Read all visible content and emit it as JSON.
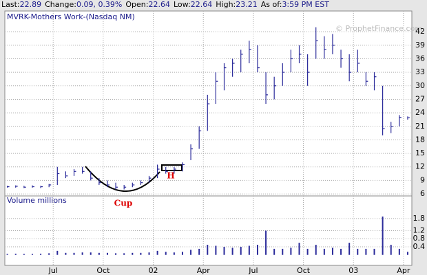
{
  "header": {
    "items": [
      {
        "label": "Last:",
        "value": "22.89"
      },
      {
        "label": "Change:",
        "value": "0.09, 0.39%"
      },
      {
        "label": "Open:",
        "value": "22.64"
      },
      {
        "label": "Low:",
        "value": "22.64"
      },
      {
        "label": "High:",
        "value": "23.21"
      },
      {
        "label": "As of:",
        "value": "3:59 PM EST"
      }
    ]
  },
  "watermark": "© ProphetFinance.com",
  "chart_data": [
    {
      "type": "ohlc",
      "title": "MVRK-Mothers Work-(Nasdaq NM)",
      "color": "#2a2a9a",
      "annotations": [
        "Cup",
        "H"
      ],
      "x": [
        3.25,
        3.75,
        4.25,
        4.75,
        5.25,
        5.75,
        6.25,
        6.75,
        7.25,
        7.75,
        8.25,
        8.75,
        9.25,
        9.75,
        10.25,
        10.75,
        11.25,
        11.75,
        12.25,
        12.75,
        13.25,
        13.75,
        14.25,
        14.75,
        15.25,
        15.75,
        16.25,
        16.75,
        17.25,
        17.75,
        18.25,
        18.75,
        19.25,
        19.75,
        20.25,
        20.75,
        21.25,
        21.75,
        22.25,
        22.75,
        23.25,
        23.75,
        24.25,
        24.75,
        25.25,
        25.75,
        26.25,
        26.75,
        27.25
      ],
      "high": [
        7.8,
        7.9,
        7.8,
        7.9,
        7.8,
        8.2,
        12,
        11,
        11.5,
        12,
        11,
        9.5,
        9,
        8.5,
        8,
        8.5,
        9,
        10,
        12.5,
        12,
        12,
        13,
        17,
        21,
        28,
        33,
        35,
        36,
        38,
        40,
        39,
        33,
        32,
        35,
        38,
        39,
        37,
        43,
        41,
        41.5,
        38,
        37,
        38,
        33,
        33,
        30,
        22,
        23.5,
        23.2
      ],
      "low": [
        7.4,
        7.4,
        7.3,
        7.4,
        7.3,
        7.5,
        8,
        9.5,
        10,
        10.5,
        9,
        8,
        7.5,
        7,
        7,
        7.5,
        8,
        8.5,
        9.5,
        10.5,
        10.5,
        11,
        13.5,
        16,
        20,
        26,
        29,
        32,
        33,
        35,
        33,
        26,
        27,
        30,
        33,
        35,
        30,
        36,
        36,
        37,
        34,
        31,
        33,
        30,
        29,
        19,
        19.5,
        21,
        22.5
      ],
      "close": [
        7.6,
        7.7,
        7.5,
        7.6,
        7.6,
        8,
        10.5,
        10,
        11,
        11,
        9.5,
        8.5,
        8,
        7.5,
        7.5,
        8,
        8.5,
        9.5,
        11.5,
        11,
        11.5,
        12.5,
        16,
        20,
        26,
        31,
        34,
        35,
        37,
        38,
        34,
        28,
        30,
        33,
        36,
        37,
        33,
        40,
        38,
        39,
        36,
        33,
        35,
        31,
        32,
        20.5,
        21,
        23,
        22.9
      ],
      "ylim": [
        5.4,
        46.6
      ],
      "yticks": [
        6,
        9,
        12,
        15,
        18,
        21,
        24,
        27,
        30,
        33,
        36,
        39,
        42
      ],
      "grid": true
    },
    {
      "type": "bar",
      "title": "Volume millions",
      "color": "#2a2a9a",
      "x": [
        3.25,
        3.75,
        4.25,
        4.75,
        5.25,
        5.75,
        6.25,
        6.75,
        7.25,
        7.75,
        8.25,
        8.75,
        9.25,
        9.75,
        10.25,
        10.75,
        11.25,
        11.75,
        12.25,
        12.75,
        13.25,
        13.75,
        14.25,
        14.75,
        15.25,
        15.75,
        16.25,
        16.75,
        17.25,
        17.75,
        18.25,
        18.75,
        19.25,
        19.75,
        20.25,
        20.75,
        21.25,
        21.75,
        22.25,
        22.75,
        23.25,
        23.75,
        24.25,
        24.75,
        25.25,
        25.75,
        26.25,
        26.75,
        27.25
      ],
      "values": [
        0.05,
        0.06,
        0.05,
        0.05,
        0.06,
        0.08,
        0.2,
        0.1,
        0.1,
        0.12,
        0.12,
        0.1,
        0.1,
        0.08,
        0.08,
        0.1,
        0.1,
        0.12,
        0.2,
        0.15,
        0.12,
        0.15,
        0.25,
        0.3,
        0.5,
        0.45,
        0.4,
        0.35,
        0.4,
        0.45,
        0.5,
        1.2,
        0.3,
        0.3,
        0.35,
        0.6,
        0.3,
        0.5,
        0.3,
        0.35,
        0.3,
        0.6,
        0.3,
        0.3,
        0.3,
        1.9,
        0.5,
        0.3,
        0.15
      ],
      "ylim": [
        -0.52,
        2.92
      ],
      "yticks": [
        0.4,
        0.8,
        1.2,
        1.8
      ],
      "xlim": [
        3.1,
        27.5
      ],
      "xticks": [
        {
          "value": 6,
          "label": "Jul"
        },
        {
          "value": 9,
          "label": "Oct"
        },
        {
          "value": 12,
          "label": "02"
        },
        {
          "value": 15,
          "label": "Apr"
        },
        {
          "value": 18,
          "label": "Jul"
        },
        {
          "value": 21,
          "label": "Oct"
        },
        {
          "value": 24,
          "label": "03"
        },
        {
          "value": 27,
          "label": "Apr"
        }
      ],
      "grid": true
    }
  ]
}
